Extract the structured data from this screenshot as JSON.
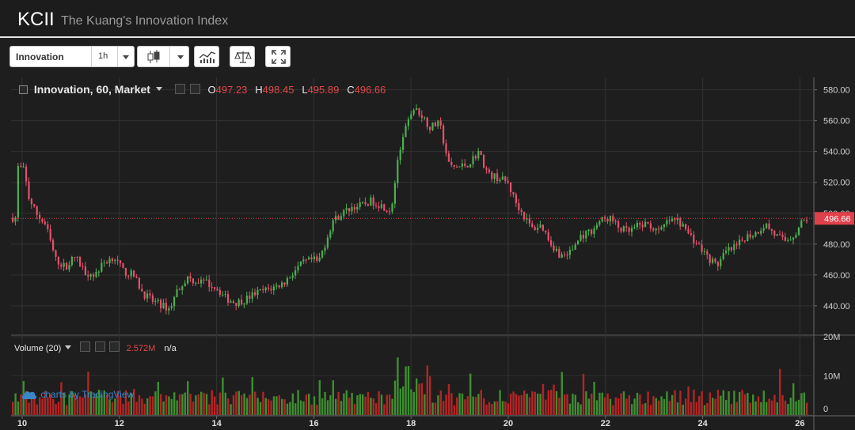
{
  "header": {
    "symbol": "KCII",
    "description": "The Kuang's Innovation Index"
  },
  "toolbar": {
    "symbol_name": "Innovation",
    "interval": "1h",
    "icons": [
      "candles-icon",
      "indicators-icon",
      "compare-icon",
      "fullscreen-icon"
    ]
  },
  "legend": {
    "title": "Innovation, 60, Market",
    "o_label": "O",
    "o_value": "497.23",
    "h_label": "H",
    "h_value": "498.45",
    "l_label": "L",
    "l_value": "495.89",
    "c_label": "C",
    "c_value": "496.66"
  },
  "volume_legend": {
    "title": "Volume (20)",
    "value": "2.572M",
    "extra": "n/a"
  },
  "watermark": {
    "prefix": "charts by",
    "brand": "TradingView"
  },
  "colors": {
    "up": "#4caf50",
    "down": "#e5506b",
    "vol_up": "#3d8f2f",
    "vol_down": "#b52424",
    "last_price": "#e0404a"
  },
  "chart_data": {
    "type": "candlestick",
    "x_ticks": [
      "10",
      "12",
      "14",
      "16",
      "18",
      "20",
      "22",
      "24",
      "26"
    ],
    "y_ticks": [
      "580.00",
      "560.00",
      "540.00",
      "520.00",
      "500.00",
      "480.00",
      "460.00",
      "440.00"
    ],
    "ylim": [
      422,
      588
    ],
    "volume_ticks": [
      "20M",
      "10M",
      "0"
    ],
    "volume_max": 20,
    "last_price": 496.66,
    "last_price_label": "496.66",
    "price_path": [
      [
        9.9,
        530
      ],
      [
        10.05,
        528
      ],
      [
        10.15,
        510
      ],
      [
        10.3,
        500
      ],
      [
        10.5,
        492
      ],
      [
        10.7,
        470
      ],
      [
        10.9,
        465
      ],
      [
        11.1,
        472
      ],
      [
        11.3,
        462
      ],
      [
        11.5,
        460
      ],
      [
        11.7,
        468
      ],
      [
        11.9,
        472
      ],
      [
        12.1,
        462
      ],
      [
        12.3,
        460
      ],
      [
        12.5,
        448
      ],
      [
        12.7,
        443
      ],
      [
        12.9,
        440
      ],
      [
        13.05,
        438
      ],
      [
        13.2,
        450
      ],
      [
        13.4,
        458
      ],
      [
        13.6,
        456
      ],
      [
        13.8,
        455
      ],
      [
        14.0,
        452
      ],
      [
        14.2,
        445
      ],
      [
        14.4,
        442
      ],
      [
        14.6,
        444
      ],
      [
        14.8,
        448
      ],
      [
        15.0,
        450
      ],
      [
        15.2,
        452
      ],
      [
        15.4,
        455
      ],
      [
        15.6,
        462
      ],
      [
        15.8,
        468
      ],
      [
        16.0,
        470
      ],
      [
        16.1,
        468
      ],
      [
        16.2,
        476
      ],
      [
        16.4,
        495
      ],
      [
        16.6,
        500
      ],
      [
        16.8,
        504
      ],
      [
        17.0,
        505
      ],
      [
        17.2,
        508
      ],
      [
        17.4,
        505
      ],
      [
        17.6,
        502
      ],
      [
        17.75,
        535
      ],
      [
        17.9,
        555
      ],
      [
        18.05,
        568
      ],
      [
        18.2,
        565
      ],
      [
        18.4,
        556
      ],
      [
        18.6,
        558
      ],
      [
        18.8,
        530
      ],
      [
        19.0,
        530
      ],
      [
        19.2,
        532
      ],
      [
        19.4,
        540
      ],
      [
        19.6,
        525
      ],
      [
        19.8,
        523
      ],
      [
        20.0,
        520
      ],
      [
        20.15,
        508
      ],
      [
        20.3,
        500
      ],
      [
        20.5,
        490
      ],
      [
        20.7,
        492
      ],
      [
        20.9,
        480
      ],
      [
        21.1,
        472
      ],
      [
        21.3,
        475
      ],
      [
        21.5,
        485
      ],
      [
        21.7,
        488
      ],
      [
        21.9,
        495
      ],
      [
        22.1,
        497
      ],
      [
        22.3,
        490
      ],
      [
        22.5,
        488
      ],
      [
        22.7,
        492
      ],
      [
        22.9,
        493
      ],
      [
        23.1,
        487
      ],
      [
        23.3,
        495
      ],
      [
        23.5,
        495
      ],
      [
        23.7,
        488
      ],
      [
        23.9,
        480
      ],
      [
        24.1,
        472
      ],
      [
        24.3,
        466
      ],
      [
        24.5,
        475
      ],
      [
        24.7,
        478
      ],
      [
        24.9,
        485
      ],
      [
        25.1,
        487
      ],
      [
        25.3,
        493
      ],
      [
        25.5,
        486
      ],
      [
        25.7,
        482
      ],
      [
        25.9,
        486
      ],
      [
        26.05,
        494
      ],
      [
        26.2,
        497
      ]
    ]
  }
}
